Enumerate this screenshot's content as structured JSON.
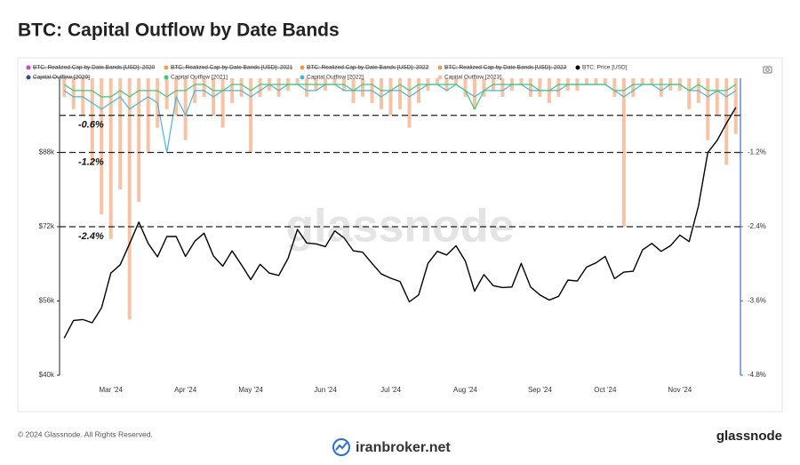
{
  "chart_data": {
    "type": "combo",
    "title": "BTC: Capital Outflow by Date Bands",
    "watermark": "glassnode",
    "categories": [
      null,
      null,
      null,
      null,
      null,
      "Mar '24",
      null,
      null,
      null,
      null,
      null,
      null,
      null,
      "Apr '24",
      null,
      null,
      null,
      null,
      null,
      null,
      "May '24",
      null,
      null,
      null,
      null,
      null,
      null,
      null,
      "Jun '24",
      null,
      null,
      null,
      null,
      null,
      null,
      "Jul '24",
      null,
      null,
      null,
      null,
      null,
      null,
      null,
      "Aug '24",
      null,
      null,
      null,
      null,
      null,
      null,
      null,
      "Sep '24",
      null,
      null,
      null,
      null,
      null,
      null,
      "Oct '24",
      null,
      null,
      null,
      null,
      null,
      null,
      null,
      "Nov '24",
      null,
      null,
      null,
      null,
      null,
      null
    ],
    "series": [
      {
        "name": "Capital Outflow [2023]",
        "type": "bar",
        "axis": "y2",
        "color": "#f6c3a6",
        "values": [
          -0.3,
          -0.5,
          -0.6,
          -1.4,
          -2.2,
          -2.6,
          -1.8,
          -3.9,
          -2.0,
          -1.2,
          -0.8,
          -0.5,
          -0.6,
          -1.0,
          -0.4,
          -0.3,
          -0.6,
          -0.8,
          -0.4,
          -0.3,
          -1.2,
          -0.3,
          -0.2,
          -0.3,
          -0.2,
          -0.1,
          -0.3,
          -0.2,
          -0.2,
          -0.1,
          -0.2,
          -0.4,
          -0.3,
          -0.4,
          -0.5,
          -0.6,
          -0.5,
          -0.8,
          -0.4,
          -0.2,
          -0.1,
          -0.2,
          -0.1,
          -0.3,
          -0.5,
          -0.3,
          -0.2,
          -0.3,
          -0.2,
          -0.1,
          -0.3,
          -0.3,
          -0.4,
          -0.3,
          -0.2,
          -0.2,
          -0.1,
          -0.1,
          -0.1,
          -0.3,
          -2.4,
          -0.3,
          -0.1,
          -0.1,
          -0.3,
          -0.2,
          -0.2,
          -0.5,
          -0.4,
          -1.0,
          -0.6,
          -1.4,
          -0.9
        ]
      },
      {
        "name": "Capital Outflow [2022]",
        "type": "line",
        "axis": "y2",
        "color": "#4fb3d9",
        "values": [
          -0.2,
          -0.3,
          -0.3,
          -0.4,
          -0.5,
          -0.4,
          -0.3,
          -0.5,
          -0.4,
          -0.3,
          -0.4,
          -1.2,
          -0.3,
          -0.6,
          -0.2,
          -0.2,
          -0.3,
          -0.2,
          -0.2,
          -0.2,
          -0.3,
          -0.2,
          -0.1,
          -0.2,
          -0.1,
          -0.1,
          -0.2,
          -0.2,
          -0.1,
          -0.1,
          -0.2,
          -0.2,
          -0.2,
          -0.2,
          -0.3,
          -0.2,
          -0.2,
          -0.3,
          -0.2,
          -0.1,
          -0.1,
          -0.2,
          -0.1,
          -0.2,
          -0.3,
          -0.2,
          -0.2,
          -0.2,
          -0.1,
          -0.1,
          -0.2,
          -0.2,
          -0.2,
          -0.2,
          -0.1,
          -0.1,
          -0.1,
          -0.1,
          -0.1,
          -0.2,
          -0.3,
          -0.2,
          -0.1,
          -0.1,
          -0.2,
          -0.1,
          -0.1,
          -0.2,
          -0.2,
          -0.3,
          -0.2,
          -0.3,
          -0.2
        ]
      },
      {
        "name": "Capital Outflow [2021]",
        "type": "line",
        "axis": "y2",
        "color": "#3ec77a",
        "values": [
          -0.1,
          -0.2,
          -0.2,
          -0.2,
          -0.3,
          -0.3,
          -0.2,
          -0.3,
          -0.2,
          -0.2,
          -0.2,
          -0.3,
          -0.2,
          -0.2,
          -0.1,
          -0.1,
          -0.2,
          -0.2,
          -0.1,
          -0.1,
          -0.2,
          -0.1,
          -0.1,
          -0.1,
          -0.1,
          -0.1,
          -0.1,
          -0.1,
          -0.1,
          -0.1,
          -0.1,
          -0.2,
          -0.1,
          -0.1,
          -0.2,
          -0.2,
          -0.1,
          -0.2,
          -0.1,
          -0.1,
          -0.1,
          -0.1,
          -0.1,
          -0.2,
          -0.5,
          -0.2,
          -0.1,
          -0.1,
          -0.1,
          -0.1,
          -0.1,
          -0.2,
          -0.2,
          -0.1,
          -0.1,
          -0.1,
          -0.1,
          -0.1,
          -0.1,
          -0.2,
          -0.2,
          -0.1,
          -0.1,
          -0.1,
          -0.1,
          -0.1,
          -0.1,
          -0.2,
          -0.1,
          -0.2,
          -0.2,
          -0.2,
          -0.1
        ]
      },
      {
        "name": "BTC: Price [USD]",
        "type": "line",
        "axis": "y",
        "color": "#000000",
        "values": [
          48000,
          51800,
          52000,
          51300,
          54500,
          62000,
          63800,
          68300,
          73000,
          68400,
          65500,
          69900,
          69900,
          65600,
          68900,
          70600,
          65700,
          63500,
          66800,
          63800,
          60600,
          63900,
          62000,
          61500,
          65200,
          71400,
          68500,
          68300,
          67700,
          71100,
          69600,
          66800,
          66500,
          64100,
          61800,
          60900,
          60200,
          55800,
          57300,
          64100,
          66700,
          65900,
          67900,
          64600,
          58100,
          61700,
          59300,
          58900,
          59000,
          64100,
          59000,
          57300,
          56200,
          57000,
          60500,
          60300,
          63300,
          64200,
          65600,
          60800,
          62200,
          62400,
          67000,
          68400,
          66700,
          67900,
          70200,
          68800,
          76500,
          88000,
          90600,
          94300,
          97700
        ]
      }
    ],
    "hidden_series": [
      {
        "name": "BTC: Realized Cap by Date Bands [USD]: 2020",
        "color": "#d23fd2"
      },
      {
        "name": "BTC: Realized Cap by Date Bands [USD]: 2021",
        "color": "#f0a050"
      },
      {
        "name": "BTC: Realized Cap by Date Bands [USD]: 2022",
        "color": "#e79a4c"
      },
      {
        "name": "BTC: Realized Cap by Date Bands [USD]: 2023",
        "color": "#e0a060"
      },
      {
        "name": "Capital Outflow [2020]",
        "color": "#2b4aa0"
      }
    ],
    "ylim": [
      40000,
      104000
    ],
    "yticks": [
      {
        "value": 40000,
        "label": "$40k"
      },
      {
        "value": 56000,
        "label": "$56k"
      },
      {
        "value": 72000,
        "label": "$72k"
      },
      {
        "value": 88000,
        "label": "$88k"
      }
    ],
    "y2lim": [
      -4.8,
      0
    ],
    "y2ticks": [
      {
        "value": -4.8,
        "label": "-4.8%"
      },
      {
        "value": -3.6,
        "label": "-3.6%"
      },
      {
        "value": -2.4,
        "label": "-2.4%"
      },
      {
        "value": -1.2,
        "label": "-1.2%"
      }
    ],
    "reference_lines": [
      {
        "value": -0.6,
        "label": "-0.6%"
      },
      {
        "value": -1.2,
        "label": "-1.2%"
      },
      {
        "value": -2.4,
        "label": "-2.4%"
      }
    ]
  },
  "footer": {
    "copyright": "© 2024 Glassnode. All Rights Reserved.",
    "brand": "glassnode",
    "site": "iranbroker.net"
  }
}
